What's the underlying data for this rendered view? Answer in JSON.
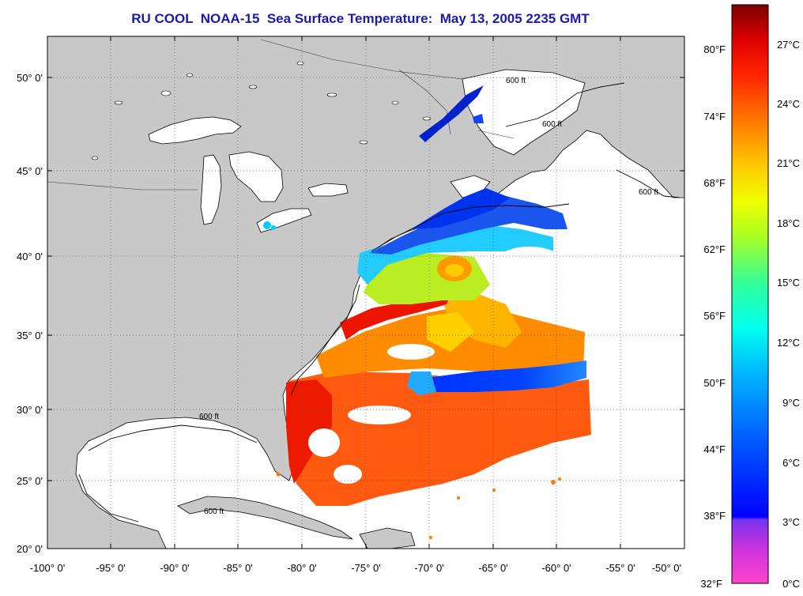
{
  "title": "RU COOL  NOAA-15  Sea Surface Temperature:  May 13, 2005 2235 GMT",
  "map": {
    "lon_range": [
      -100,
      -50
    ],
    "lat_range": [
      20,
      52.5
    ],
    "lat_labels": [
      "50° 0'",
      "45° 0'",
      "40° 0'",
      "35° 0'",
      "30° 0'",
      "25° 0'",
      "20° 0'"
    ],
    "lon_labels": [
      "-100° 0'",
      "-95° 0'",
      "-90° 0'",
      "-85° 0'",
      "-80° 0'",
      "-75° 0'",
      "-70° 0'",
      "-65° 0'",
      "-60° 0'",
      "-55° 0'",
      "-50° 0'"
    ],
    "contour_label": "600 ft",
    "land_color": "#c8c8c8",
    "water_color": "#ffffff",
    "grid": "dotted"
  },
  "colorbar": {
    "fahrenheit_labels": [
      "80°F",
      "74°F",
      "68°F",
      "62°F",
      "56°F",
      "50°F",
      "44°F",
      "38°F",
      "32°F"
    ],
    "celsius_labels": [
      "27°C",
      "24°C",
      "21°C",
      "18°C",
      "15°C",
      "12°C",
      "9°C",
      "6°C",
      "3°C",
      "0°C"
    ],
    "range_c": [
      0,
      28.5
    ],
    "colors": [
      "#ff44cc",
      "#9933ee",
      "#0000ff",
      "#0066ff",
      "#00ccff",
      "#00ffee",
      "#44ff88",
      "#ccff00",
      "#ffee00",
      "#ff9900",
      "#ff4400",
      "#ee0000",
      "#880000"
    ]
  }
}
